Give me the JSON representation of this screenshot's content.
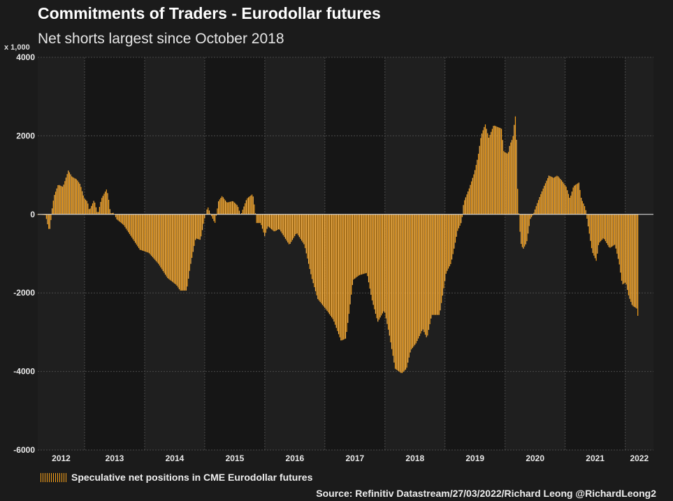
{
  "chart_data": {
    "type": "bar",
    "title": "Commitments of Traders - Eurodollar futures",
    "subtitle": "Net shorts largest since October 2018",
    "ylabel": "x 1,000",
    "xlabel": "",
    "ylim": [
      -6000,
      4000
    ],
    "xlim": [
      2012.22,
      2022.47
    ],
    "yticks": [
      "4000",
      "2000",
      "0",
      "-2000",
      "-4000",
      "-6000"
    ],
    "ytick_values": [
      4000,
      2000,
      0,
      -2000,
      -4000,
      -6000
    ],
    "xticks": [
      "2012",
      "2013",
      "2014",
      "2015",
      "2016",
      "2017",
      "2018",
      "2019",
      "2020",
      "2021",
      "2022"
    ],
    "grid": true,
    "bar_color": "#f7a11a",
    "bar_color_alt": "#ffb84d",
    "series": [
      {
        "name": "Speculative net positions in CME Eurodollar futures",
        "frequency": "weekly",
        "x": [
          2012.21,
          2012.35,
          2012.4,
          2012.43,
          2012.45,
          2012.49,
          2012.56,
          2012.64,
          2012.73,
          2012.79,
          2012.87,
          2012.93,
          2012.99,
          2013.05,
          2013.08,
          2013.16,
          2013.22,
          2013.28,
          2013.37,
          2013.4,
          2013.43,
          2013.49,
          2013.53,
          2013.65,
          2013.77,
          2013.92,
          2014.07,
          2014.23,
          2014.38,
          2014.53,
          2014.59,
          2014.7,
          2014.76,
          2014.85,
          2014.93,
          2014.99,
          2015.05,
          2015.1,
          2015.17,
          2015.23,
          2015.29,
          2015.37,
          2015.47,
          2015.55,
          2015.6,
          2015.64,
          2015.7,
          2015.8,
          2015.84,
          2015.86,
          2015.93,
          2016.0,
          2016.05,
          2016.16,
          2016.24,
          2016.41,
          2016.53,
          2016.66,
          2016.78,
          2016.88,
          2017.03,
          2017.14,
          2017.27,
          2017.35,
          2017.41,
          2017.47,
          2017.57,
          2017.7,
          2017.78,
          2017.88,
          2017.99,
          2018.07,
          2018.17,
          2018.28,
          2018.36,
          2018.43,
          2018.52,
          2018.63,
          2018.7,
          2018.78,
          2018.91,
          2018.97,
          2019.02,
          2019.1,
          2019.15,
          2019.21,
          2019.28,
          2019.31,
          2019.4,
          2019.49,
          2019.55,
          2019.6,
          2019.67,
          2019.73,
          2019.81,
          2019.9,
          2019.94,
          2019.98,
          2020.05,
          2020.08,
          2020.13,
          2020.17,
          2020.19,
          2020.21,
          2020.23,
          2020.26,
          2020.3,
          2020.36,
          2020.42,
          2020.47,
          2020.52,
          2020.58,
          2020.65,
          2020.73,
          2020.81,
          2020.87,
          2020.94,
          2021.02,
          2021.08,
          2021.14,
          2021.23,
          2021.27,
          2021.34,
          2021.37,
          2021.45,
          2021.52,
          2021.56,
          2021.64,
          2021.74,
          2021.83,
          2021.9,
          2021.95,
          2022.01,
          2022.06,
          2022.12,
          2022.19,
          2022.22
        ],
        "values": [
          0,
          -20,
          -370,
          -370,
          50,
          460,
          760,
          700,
          1120,
          960,
          890,
          760,
          420,
          320,
          100,
          370,
          0,
          400,
          650,
          400,
          30,
          40,
          -120,
          -270,
          -550,
          -900,
          -980,
          -1260,
          -1620,
          -1800,
          -1940,
          -1940,
          -1320,
          -610,
          -650,
          -150,
          200,
          0,
          -230,
          340,
          470,
          300,
          340,
          220,
          -30,
          150,
          400,
          520,
          100,
          -220,
          -220,
          -560,
          -300,
          -440,
          -370,
          -780,
          -470,
          -780,
          -1610,
          -2150,
          -2440,
          -2680,
          -3220,
          -3160,
          -2440,
          -1670,
          -1550,
          -1490,
          -2150,
          -2740,
          -2440,
          -3040,
          -3930,
          -4050,
          -3930,
          -3460,
          -3280,
          -2920,
          -3160,
          -2560,
          -2560,
          -1970,
          -1490,
          -1250,
          -890,
          -420,
          -180,
          300,
          650,
          1070,
          1480,
          2000,
          2300,
          1950,
          2270,
          2210,
          2190,
          1600,
          1540,
          1780,
          1950,
          2540,
          1950,
          650,
          0,
          -720,
          -890,
          -720,
          -120,
          0,
          220,
          460,
          720,
          990,
          930,
          990,
          870,
          700,
          400,
          720,
          810,
          400,
          160,
          -180,
          -950,
          -1190,
          -740,
          -600,
          -860,
          -770,
          -1250,
          -1790,
          -1730,
          -2090,
          -2330,
          -2390,
          -2680
        ]
      }
    ],
    "legend": {
      "label": "Speculative net positions in CME Eurodollar futures",
      "placement": "bottom-left"
    },
    "source": "Source: Refinitiv Datastream/27/03/2022/Richard Leong @RichardLeong2"
  }
}
